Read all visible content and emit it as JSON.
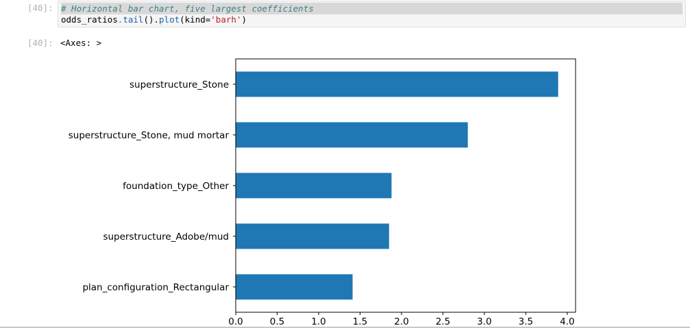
{
  "input_cell": {
    "prompt": "[40]:",
    "code_lines": {
      "comment": "# Horizontal bar chart, five largest coefficients",
      "line2": {
        "var": "odds_ratios",
        "dot1": ".",
        "method1": "tail",
        "paren1": "().",
        "method2": "plot",
        "open": "(kind=",
        "arg": "'barh'",
        "close": ")"
      }
    }
  },
  "output_cell": {
    "prompt": "[40]:",
    "text": "<Axes: >"
  },
  "colors": {
    "bar": "#1f77b4",
    "axes": "#000000"
  },
  "chart_data": {
    "type": "bar",
    "orientation": "horizontal",
    "categories": [
      "plan_configuration_Rectangular",
      "superstructure_Adobe/mud",
      "foundation_type_Other",
      "superstructure_Stone, mud mortar",
      "superstructure_Stone"
    ],
    "values": [
      1.41,
      1.85,
      1.88,
      2.8,
      3.89
    ],
    "xticks": [
      "0.0",
      "0.5",
      "1.0",
      "1.5",
      "2.0",
      "2.5",
      "3.0",
      "3.5",
      "4.0"
    ],
    "xlim": [
      0,
      4.1
    ],
    "title": "",
    "xlabel": "",
    "ylabel": "",
    "grid": false
  }
}
